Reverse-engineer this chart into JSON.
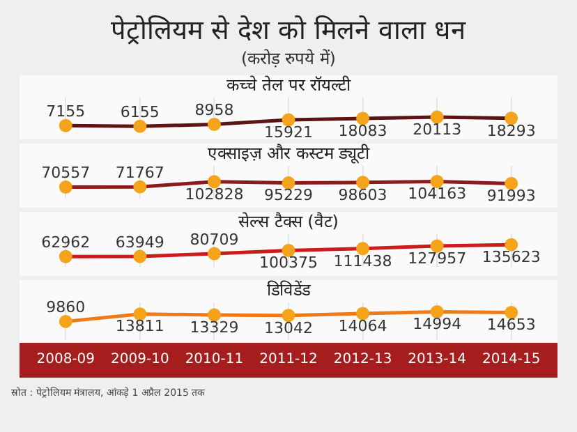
{
  "chart_data": [
    {
      "type": "line",
      "title": "पेट्रोलियम से देश को मिलने वाला धन",
      "subtitle": "(करोड़ रुपये में)",
      "categories": [
        "2008-09",
        "2009-10",
        "2010-11",
        "2011-12",
        "2012-13",
        "2013-14",
        "2014-15"
      ],
      "tick_labels": false,
      "grid": "x",
      "marker": "circle",
      "data_labels": true,
      "legend": "top",
      "series": [
        {
          "name": "कच्चे तेल पर रॉयल्टी",
          "color": "#5c1414",
          "colors": [
            "#f5a31a",
            "#f5a31a",
            "#f5a31a",
            "#f5a31a",
            "#f5a31a",
            "#f5a31a",
            "#f5a31a"
          ],
          "values": [
            7155,
            6155,
            8958,
            15921,
            18083,
            20113,
            18293
          ]
        }
      ]
    },
    {
      "type": "line",
      "categories": [
        "2008-09",
        "2009-10",
        "2010-11",
        "2011-12",
        "2012-13",
        "2013-14",
        "2014-15"
      ],
      "tick_labels": false,
      "grid": "x",
      "marker": "circle",
      "data_labels": true,
      "legend": "top",
      "series": [
        {
          "name": "एक्साइज़ और कस्टम ड्यूटी",
          "color": "#8a1c1c",
          "colors": [
            "#f5a31a",
            "#f5a31a",
            "#f5a31a",
            "#f5a31a",
            "#f5a31a",
            "#f5a31a",
            "#f5a31a"
          ],
          "values": [
            70557,
            71767,
            102828,
            95229,
            98603,
            104163,
            91993
          ]
        }
      ]
    },
    {
      "type": "line",
      "categories": [
        "2008-09",
        "2009-10",
        "2010-11",
        "2011-12",
        "2012-13",
        "2013-14",
        "2014-15"
      ],
      "tick_labels": false,
      "grid": "x",
      "marker": "circle",
      "data_labels": true,
      "legend": "top",
      "series": [
        {
          "name": "सेल्स टैक्स (वैट)",
          "color": "#cc1b1b",
          "colors": [
            "#f5a31a",
            "#f5a31a",
            "#f5a31a",
            "#f5a31a",
            "#f5a31a",
            "#f5a31a",
            "#f5a31a"
          ],
          "values": [
            62962,
            63949,
            80709,
            100375,
            111438,
            127957,
            135623
          ]
        }
      ]
    },
    {
      "type": "line",
      "categories": [
        "2008-09",
        "2009-10",
        "2010-11",
        "2011-12",
        "2012-13",
        "2013-14",
        "2014-15"
      ],
      "tick_labels": "x",
      "grid": "x",
      "marker": "circle",
      "data_labels": true,
      "legend": "top",
      "annotations": [
        "स्रोत : पेट्रोलियम मंत्रालय, आंकड़े 1  अप्रैल 2015 तक"
      ],
      "series": [
        {
          "name": "डिविडेंड",
          "color": "#f07a1a",
          "colors": [
            "#f5a31a",
            "#f5a31a",
            "#f5a31a",
            "#f5a31a",
            "#f5a31a",
            "#f5a31a",
            "#f5a31a"
          ],
          "values": [
            9860,
            13811,
            13329,
            13042,
            14064,
            14994,
            14653
          ]
        }
      ]
    }
  ]
}
